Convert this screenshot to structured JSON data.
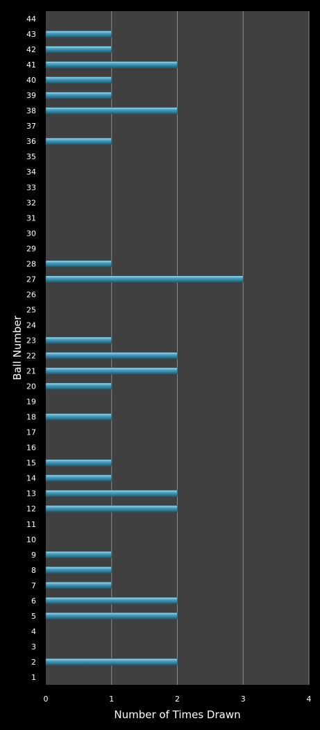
{
  "chart_data": {
    "type": "bar",
    "orientation": "horizontal",
    "title": "",
    "xlabel": "Number of Times Drawn",
    "ylabel": "Ball Number",
    "xlim": [
      0,
      4
    ],
    "xticks": [
      "0",
      "1",
      "2",
      "3",
      "4"
    ],
    "grid": true,
    "legend": "none",
    "categories": [
      "1",
      "2",
      "3",
      "4",
      "5",
      "6",
      "7",
      "8",
      "9",
      "10",
      "11",
      "12",
      "13",
      "14",
      "15",
      "16",
      "17",
      "18",
      "19",
      "20",
      "21",
      "22",
      "23",
      "24",
      "25",
      "26",
      "27",
      "28",
      "29",
      "30",
      "31",
      "32",
      "33",
      "34",
      "35",
      "36",
      "37",
      "38",
      "39",
      "40",
      "41",
      "42",
      "43",
      "44"
    ],
    "values": [
      0,
      2,
      0,
      0,
      2,
      2,
      1,
      1,
      1,
      0,
      0,
      2,
      2,
      1,
      1,
      0,
      0,
      1,
      0,
      1,
      2,
      2,
      1,
      0,
      0,
      0,
      3,
      1,
      0,
      0,
      0,
      0,
      0,
      0,
      0,
      1,
      0,
      2,
      1,
      1,
      2,
      1,
      1,
      0
    ],
    "colors": {
      "page_background": "#000000",
      "plot_background": "#404040",
      "gridline": "#8c8c8c",
      "bar_fill": "#4ba3c3",
      "bar_highlight": "#a8e0f2",
      "bar_shadow": "#1d5c73",
      "text": "#ffffff"
    }
  }
}
